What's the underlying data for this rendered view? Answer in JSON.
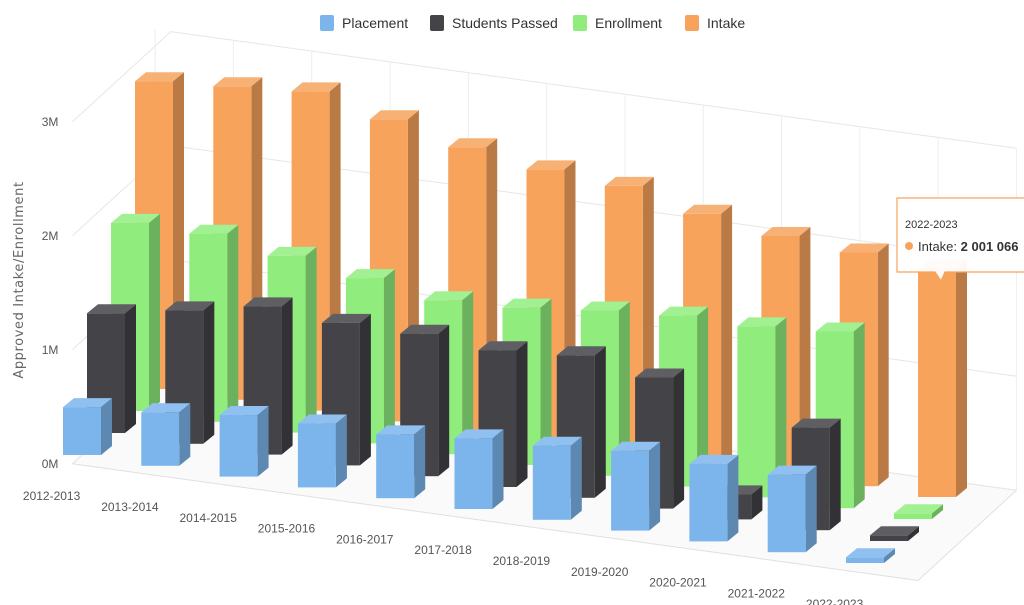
{
  "chart_data": {
    "type": "bar",
    "ylabel": "Approved Intake/Enrollment",
    "xlabel": "",
    "ylim": [
      0,
      3000000
    ],
    "yticks": [
      "0M",
      "1M",
      "2M",
      "3M"
    ],
    "ytick_values": [
      0,
      1000000,
      2000000,
      3000000
    ],
    "grid": true,
    "legend_placement": "top-center",
    "categories": [
      "2012-2013",
      "2013-2014",
      "2014-2015",
      "2015-2016",
      "2016-2017",
      "2017-2018",
      "2018-2019",
      "2019-2020",
      "2020-2021",
      "2021-2022",
      "2022-2023"
    ],
    "series": [
      {
        "name": "Placement",
        "color": "#7cb5ec",
        "values": [
          420000,
          470000,
          540000,
          560000,
          560000,
          620000,
          650000,
          700000,
          680000,
          680000,
          50000
        ]
      },
      {
        "name": "Students Passed",
        "color": "#434348",
        "values": [
          1050000,
          1170000,
          1300000,
          1250000,
          1250000,
          1200000,
          1250000,
          1150000,
          220000,
          900000,
          50000
        ]
      },
      {
        "name": "Enrollment",
        "color": "#90ed7d",
        "values": [
          1650000,
          1650000,
          1550000,
          1450000,
          1350000,
          1380000,
          1450000,
          1500000,
          1500000,
          1550000,
          50000
        ]
      },
      {
        "name": "Intake",
        "color": "#f7a35c",
        "values": [
          2700000,
          2750000,
          2800000,
          2650000,
          2500000,
          2400000,
          2350000,
          2200000,
          2100000,
          2050000,
          2001066
        ]
      }
    ],
    "tooltip": {
      "category": "2022-2023",
      "series": "Intake",
      "label": "Intake: ",
      "value": "2 001 066"
    }
  }
}
